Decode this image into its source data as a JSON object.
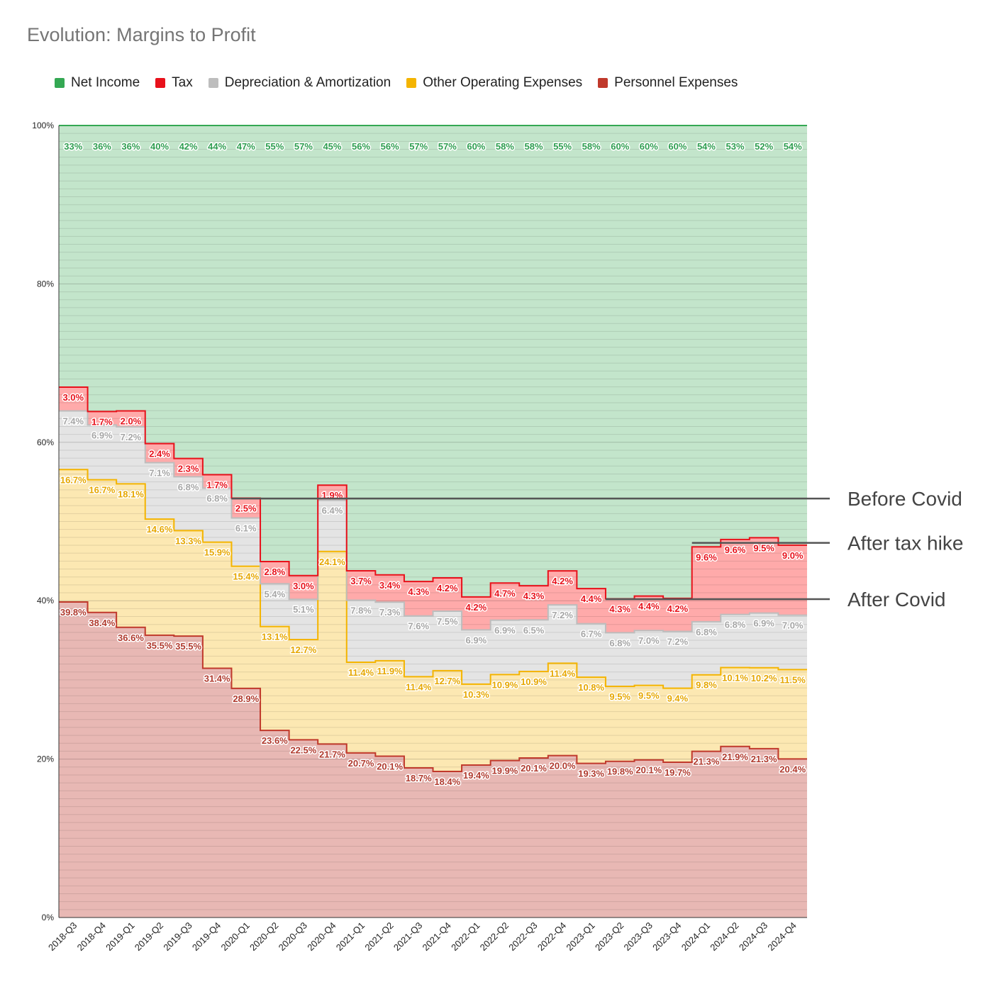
{
  "chart_data": {
    "type": "area",
    "stacked": true,
    "normalized": true,
    "step": true,
    "title": "Evolution: Margins to Profit",
    "legend_position": "top",
    "ylim": [
      0,
      100
    ],
    "yticks": [
      "0%",
      "20%",
      "40%",
      "60%",
      "80%",
      "100%"
    ],
    "categories": [
      "2018-Q3",
      "2018-Q4",
      "2019-Q1",
      "2019-Q2",
      "2019-Q3",
      "2019-Q4",
      "2020-Q1",
      "2020-Q2",
      "2020-Q3",
      "2020-Q4",
      "2021-Q1",
      "2021-Q2",
      "2021-Q3",
      "2021-Q4",
      "2022-Q1",
      "2022-Q2",
      "2022-Q3",
      "2022-Q4",
      "2023-Q1",
      "2023-Q2",
      "2023-Q3",
      "2023-Q4",
      "2024-Q1",
      "2024-Q2",
      "2024-Q3",
      "2024-Q4"
    ],
    "series": [
      {
        "name": "Personnel Expenses",
        "color": "#c0392b",
        "fill": "#e8b8b4",
        "values": [
          39.8,
          38.4,
          36.6,
          35.5,
          35.5,
          31.4,
          28.9,
          23.6,
          22.5,
          21.7,
          20.7,
          20.1,
          18.7,
          18.4,
          19.4,
          19.9,
          20.1,
          20.0,
          19.3,
          19.8,
          20.1,
          19.7,
          21.3,
          21.9,
          21.3,
          20.4
        ],
        "labels": [
          "39.8%",
          "38.4%",
          "36.6%",
          "35.5%",
          "35.5%",
          "31.4%",
          "28.9%",
          "23.6%",
          "22.5%",
          "21.7%",
          "20.7%",
          "20.1%",
          "18.7%",
          "18.4%",
          "19.4%",
          "19.9%",
          "20.1%",
          "20.0%",
          "19.3%",
          "19.8%",
          "20.1%",
          "19.7%",
          "21.3%",
          "21.9%",
          "21.3%",
          "20.4%"
        ]
      },
      {
        "name": "Other Operating Expenses",
        "color": "#f4b400",
        "fill": "#fce8b2",
        "values": [
          16.7,
          16.7,
          18.1,
          14.6,
          13.3,
          15.9,
          15.4,
          13.1,
          12.7,
          24.1,
          11.4,
          11.9,
          11.4,
          12.7,
          10.3,
          10.9,
          10.9,
          11.4,
          10.8,
          9.5,
          9.5,
          9.4,
          9.8,
          10.1,
          10.2,
          11.5
        ],
        "labels": [
          "16.7%",
          "16.7%",
          "18.1%",
          "14.6%",
          "13.3%",
          "15.9%",
          "15.4%",
          "13.1%",
          "12.7%",
          "24.1%",
          "11.4%",
          "11.9%",
          "11.4%",
          "12.7%",
          "10.3%",
          "10.9%",
          "10.9%",
          "11.4%",
          "10.8%",
          "9.5%",
          "9.5%",
          "9.4%",
          "9.8%",
          "10.1%",
          "10.2%",
          "11.5%"
        ]
      },
      {
        "name": "Depreciation & Amortization",
        "color": "#bdbdbd",
        "fill": "#e4e4e4",
        "values": [
          7.4,
          6.9,
          7.2,
          7.1,
          6.8,
          6.8,
          6.1,
          5.4,
          5.1,
          6.4,
          7.8,
          7.3,
          7.6,
          7.5,
          6.9,
          6.9,
          6.5,
          7.2,
          6.7,
          6.8,
          7.0,
          7.2,
          6.8,
          6.8,
          6.9,
          7.0
        ],
        "labels": [
          "7.4%",
          "6.9%",
          "7.2%",
          "7.1%",
          "6.8%",
          "6.8%",
          "6.1%",
          "5.4%",
          "5.1%",
          "6.4%",
          "7.8%",
          "7.3%",
          "7.6%",
          "7.5%",
          "6.9%",
          "6.9%",
          "6.5%",
          "7.2%",
          "6.7%",
          "6.8%",
          "7.0%",
          "7.2%",
          "6.8%",
          "6.8%",
          "6.9%",
          "7.0%"
        ]
      },
      {
        "name": "Tax",
        "color": "#e8111b",
        "fill": "#ffaaaa",
        "values": [
          3.0,
          1.7,
          2.0,
          2.4,
          2.3,
          1.7,
          2.5,
          2.8,
          3.0,
          1.9,
          3.7,
          3.4,
          4.3,
          4.2,
          4.2,
          4.7,
          4.3,
          4.2,
          4.4,
          4.3,
          4.4,
          4.2,
          9.6,
          9.6,
          9.5,
          9.0
        ],
        "labels": [
          "3.0%",
          "1.7%",
          "2.0%",
          "2.4%",
          "2.3%",
          "1.7%",
          "2.5%",
          "2.8%",
          "3.0%",
          "1.9%",
          "3.7%",
          "3.4%",
          "4.3%",
          "4.2%",
          "4.2%",
          "4.7%",
          "4.3%",
          "4.2%",
          "4.4%",
          "4.3%",
          "4.4%",
          "4.2%",
          "9.6%",
          "9.6%",
          "9.5%",
          "9.0%"
        ]
      },
      {
        "name": "Net Income",
        "color": "#34a853",
        "fill": "#c3e5cb",
        "values": [
          33,
          36,
          36,
          40,
          42,
          44,
          47,
          55,
          57,
          45,
          56,
          56,
          57,
          57,
          60,
          58,
          58,
          55,
          58,
          60,
          60,
          60,
          54,
          53,
          52,
          54
        ],
        "labels": [
          "33%",
          "36%",
          "36%",
          "40%",
          "42%",
          "44%",
          "47%",
          "55%",
          "57%",
          "45%",
          "56%",
          "56%",
          "57%",
          "57%",
          "60%",
          "58%",
          "58%",
          "55%",
          "58%",
          "60%",
          "60%",
          "60%",
          "54%",
          "53%",
          "52%",
          "54%"
        ]
      }
    ],
    "legend_order": [
      "Net Income",
      "Tax",
      "Depreciation & Amortization",
      "Other Operating Expenses",
      "Personnel Expenses"
    ],
    "annotations": [
      {
        "label": "Before Covid",
        "y": 52.9,
        "from_category": "2020-Q1"
      },
      {
        "label": "After tax hike",
        "y": 47.3,
        "from_category": "2024-Q1"
      },
      {
        "label": "After Covid",
        "y": 40.2,
        "from_category": "2023-Q2"
      }
    ]
  }
}
